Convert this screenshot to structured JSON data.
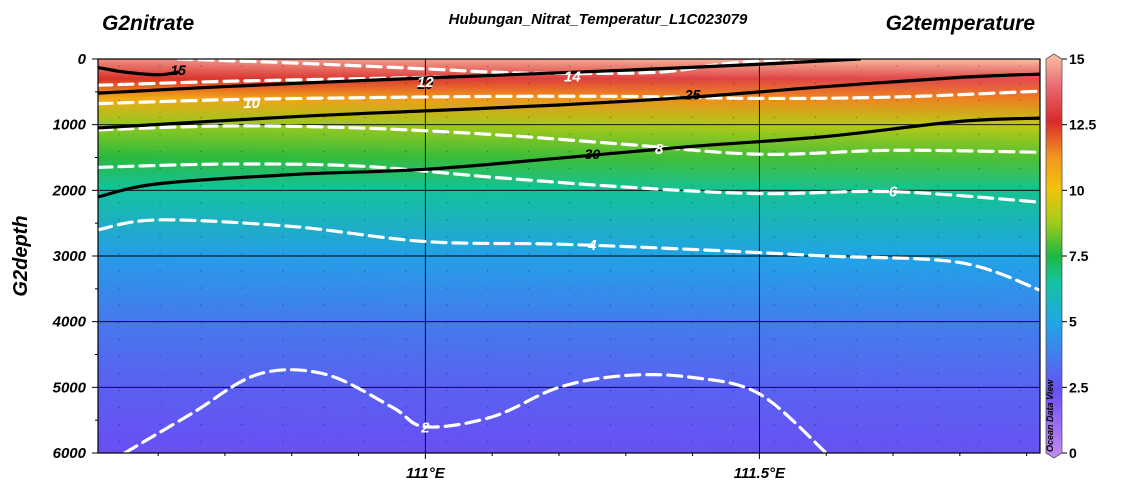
{
  "titles": {
    "left": "G2nitrate",
    "center": "Hubungan_Nitrat_Temperatur_L1C023079",
    "right": "G2temperature"
  },
  "watermark": "Ocean Data View",
  "chart_data": {
    "type": "section-contour",
    "title": "Hubungan_Nitrat_Temperatur_L1C023079",
    "xlabel": "",
    "ylabel": "G2depth",
    "x_range_lon": [
      110.51,
      111.92
    ],
    "y_range_depth": [
      0,
      6000
    ],
    "y_inverted": true,
    "x_ticks": [
      {
        "value": 111.0,
        "label": "111°E"
      },
      {
        "value": 111.5,
        "label": "111.5°E"
      }
    ],
    "y_ticks": [
      {
        "value": 0,
        "label": "0"
      },
      {
        "value": 1000,
        "label": "1000"
      },
      {
        "value": 2000,
        "label": "2000"
      },
      {
        "value": 3000,
        "label": "3000"
      },
      {
        "value": 4000,
        "label": "4000"
      },
      {
        "value": 5000,
        "label": "5000"
      },
      {
        "value": 6000,
        "label": "6000"
      }
    ],
    "grid": true,
    "colorbar": {
      "variable": "G2temperature",
      "range": [
        0,
        15
      ],
      "ticks": [
        {
          "value": 15,
          "label": "15"
        },
        {
          "value": 12.5,
          "label": "12.5"
        },
        {
          "value": 10,
          "label": "10"
        },
        {
          "value": 7.5,
          "label": "7.5"
        },
        {
          "value": 5,
          "label": "5"
        },
        {
          "value": 2.5,
          "label": "2.5"
        },
        {
          "value": 0,
          "label": "0"
        }
      ],
      "stops": [
        {
          "value": 0,
          "color": "#c58af0"
        },
        {
          "value": 2.5,
          "color": "#6a4ff4"
        },
        {
          "value": 5,
          "color": "#1fa6e6"
        },
        {
          "value": 6.5,
          "color": "#14c3a2"
        },
        {
          "value": 7.5,
          "color": "#1db843"
        },
        {
          "value": 8.8,
          "color": "#a7cc1a"
        },
        {
          "value": 10,
          "color": "#f2c30b"
        },
        {
          "value": 11.2,
          "color": "#f39420"
        },
        {
          "value": 12.5,
          "color": "#d82a2a"
        },
        {
          "value": 13.8,
          "color": "#e86a72"
        },
        {
          "value": 15,
          "color": "#f8c2a2"
        }
      ],
      "position": "right"
    },
    "temperature_field": [
      {
        "depth": 0,
        "temp_west": 14.3,
        "temp_east": 15.0
      },
      {
        "depth": 300,
        "temp_west": 12.4,
        "temp_east": 13.2
      },
      {
        "depth": 600,
        "temp_west": 10.6,
        "temp_east": 11.5
      },
      {
        "depth": 1000,
        "temp_west": 8.6,
        "temp_east": 9.2
      },
      {
        "depth": 1500,
        "temp_west": 7.6,
        "temp_east": 8.0
      },
      {
        "depth": 2000,
        "temp_west": 6.5,
        "temp_east": 6.7
      },
      {
        "depth": 3000,
        "temp_west": 4.7,
        "temp_east": 5.0
      },
      {
        "depth": 4000,
        "temp_west": 3.7,
        "temp_east": 3.9
      },
      {
        "depth": 5000,
        "temp_west": 3.0,
        "temp_east": 3.1
      },
      {
        "depth": 6000,
        "temp_west": 2.5,
        "temp_east": 2.6
      }
    ],
    "nitrate_contours": [
      {
        "level": 15,
        "label": "15",
        "points": [
          [
            110.51,
            130
          ],
          [
            110.55,
            200
          ],
          [
            110.6,
            240
          ],
          [
            110.63,
            200
          ]
        ]
      },
      {
        "level": 20,
        "label": "20",
        "points": [
          [
            110.51,
            520
          ],
          [
            110.7,
            420
          ],
          [
            110.9,
            330
          ],
          [
            111.1,
            250
          ],
          [
            111.3,
            170
          ],
          [
            111.5,
            80
          ],
          [
            111.65,
            0
          ]
        ]
      },
      {
        "level": 25,
        "label": "25",
        "points": [
          [
            110.51,
            1050
          ],
          [
            110.8,
            880
          ],
          [
            111.0,
            790
          ],
          [
            111.2,
            700
          ],
          [
            111.4,
            580
          ],
          [
            111.6,
            420
          ],
          [
            111.8,
            280
          ],
          [
            111.92,
            230
          ]
        ]
      },
      {
        "level": 30,
        "label": "30",
        "points": [
          [
            110.51,
            2100
          ],
          [
            110.6,
            1900
          ],
          [
            110.8,
            1760
          ],
          [
            111.0,
            1680
          ],
          [
            111.2,
            1510
          ],
          [
            111.4,
            1330
          ],
          [
            111.6,
            1180
          ],
          [
            111.8,
            950
          ],
          [
            111.92,
            900
          ]
        ]
      }
    ],
    "temperature_contours": [
      {
        "level": 14,
        "label": "14",
        "points": [
          [
            110.63,
            0
          ],
          [
            110.8,
            60
          ],
          [
            111.0,
            150
          ],
          [
            111.1,
            200
          ],
          [
            111.2,
            220
          ],
          [
            111.35,
            200
          ],
          [
            111.45,
            70
          ],
          [
            111.55,
            0
          ]
        ]
      },
      {
        "level": 12,
        "label": "12",
        "points": [
          [
            110.51,
            400
          ],
          [
            110.7,
            340
          ],
          [
            110.9,
            300
          ],
          [
            111.05,
            270
          ]
        ]
      },
      {
        "level": 10,
        "label": "10",
        "points": [
          [
            110.51,
            680
          ],
          [
            110.7,
            620
          ],
          [
            110.9,
            590
          ],
          [
            111.1,
            570
          ],
          [
            111.3,
            570
          ],
          [
            111.5,
            600
          ],
          [
            111.7,
            580
          ],
          [
            111.92,
            490
          ]
        ]
      },
      {
        "level": 8,
        "label": "8",
        "points": [
          [
            110.51,
            1080
          ],
          [
            110.7,
            1020
          ],
          [
            110.9,
            1050
          ],
          [
            111.1,
            1150
          ],
          [
            111.3,
            1300
          ],
          [
            111.5,
            1450
          ],
          [
            111.7,
            1390
          ],
          [
            111.92,
            1420
          ]
        ]
      },
      {
        "level": 6,
        "label": "6",
        "points": [
          [
            110.51,
            1650
          ],
          [
            110.7,
            1600
          ],
          [
            110.9,
            1630
          ],
          [
            111.1,
            1800
          ],
          [
            111.3,
            1950
          ],
          [
            111.5,
            2050
          ],
          [
            111.7,
            2020
          ],
          [
            111.92,
            2180
          ]
        ]
      },
      {
        "level": 4,
        "label": "4",
        "points": [
          [
            110.51,
            2600
          ],
          [
            110.6,
            2450
          ],
          [
            110.8,
            2550
          ],
          [
            111.0,
            2780
          ],
          [
            111.2,
            2820
          ],
          [
            111.4,
            2900
          ],
          [
            111.6,
            3000
          ],
          [
            111.8,
            3100
          ],
          [
            111.92,
            3520
          ]
        ]
      },
      {
        "level": 2,
        "label": "2",
        "points": [
          [
            110.55,
            6000
          ],
          [
            110.65,
            5400
          ],
          [
            110.75,
            4800
          ],
          [
            110.85,
            4800
          ],
          [
            110.95,
            5300
          ],
          [
            111.0,
            5600
          ],
          [
            111.1,
            5450
          ],
          [
            111.2,
            5000
          ],
          [
            111.3,
            4820
          ],
          [
            111.4,
            4850
          ],
          [
            111.5,
            5100
          ],
          [
            111.6,
            6000
          ]
        ]
      }
    ],
    "contour_labels": [
      {
        "level": 15,
        "text": "15",
        "lon": 110.63,
        "depth": 170,
        "style": "black"
      },
      {
        "level": 20,
        "text": "20",
        "lon": 111.0,
        "depth": 380,
        "style": "black"
      },
      {
        "level": 25,
        "text": "25",
        "lon": 111.4,
        "depth": 540,
        "style": "black"
      },
      {
        "level": 30,
        "text": "30",
        "lon": 111.25,
        "depth": 1450,
        "style": "black"
      },
      {
        "level": 14,
        "text": "14",
        "lon": 111.22,
        "depth": 270,
        "style": "white"
      },
      {
        "level": 12,
        "text": "12",
        "lon": 111.0,
        "depth": 350,
        "style": "white"
      },
      {
        "level": 10,
        "text": "10",
        "lon": 110.74,
        "depth": 670,
        "style": "white"
      },
      {
        "level": 8,
        "text": "8",
        "lon": 111.35,
        "depth": 1370,
        "style": "white"
      },
      {
        "level": 6,
        "text": "6",
        "lon": 111.7,
        "depth": 2020,
        "style": "white"
      },
      {
        "level": 4,
        "text": "4",
        "lon": 111.25,
        "depth": 2830,
        "style": "white"
      },
      {
        "level": 2,
        "text": "2",
        "lon": 111.0,
        "depth": 5610,
        "style": "white"
      }
    ]
  }
}
